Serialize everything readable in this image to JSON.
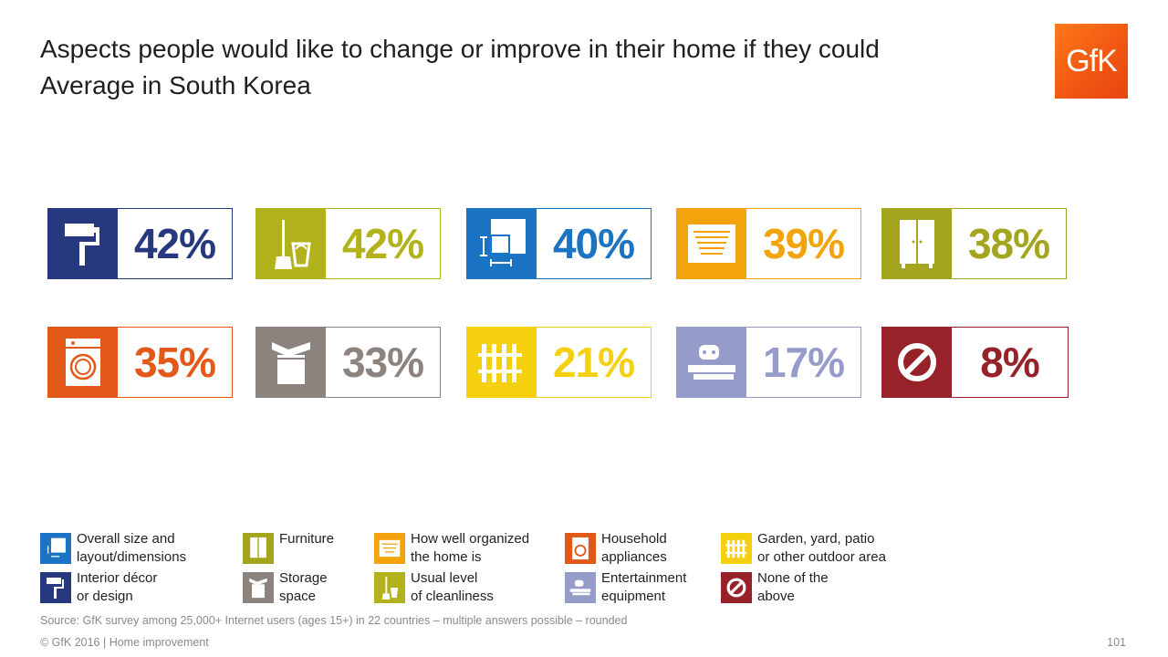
{
  "title": {
    "line1": "Aspects people would like to change or improve in their home if they could",
    "line2": "Average in South Korea"
  },
  "logo": {
    "text": "GfK",
    "color": "#f0591a"
  },
  "tiles": [
    {
      "id": "interior",
      "value": "42%",
      "color": "#27397e",
      "icon": "paint-roller-icon"
    },
    {
      "id": "cleanliness",
      "value": "42%",
      "color": "#b2b21d",
      "icon": "broom-bucket-icon"
    },
    {
      "id": "size",
      "value": "40%",
      "color": "#1a73c3",
      "icon": "floor-plan-dimensions-icon"
    },
    {
      "id": "organized",
      "value": "39%",
      "color": "#f3a40c",
      "icon": "organizer-tray-icon"
    },
    {
      "id": "furniture",
      "value": "38%",
      "color": "#a4a51e",
      "icon": "wardrobe-icon"
    },
    {
      "id": "appliances",
      "value": "35%",
      "color": "#e2591a",
      "icon": "washing-machine-icon"
    },
    {
      "id": "storage",
      "value": "33%",
      "color": "#8c837e",
      "icon": "storage-box-icon"
    },
    {
      "id": "garden",
      "value": "21%",
      "color": "#f4d00f",
      "icon": "fence-icon"
    },
    {
      "id": "entertainment",
      "value": "17%",
      "color": "#959cc9",
      "icon": "game-console-icon"
    },
    {
      "id": "none",
      "value": "8%",
      "color": "#98222a",
      "icon": "prohibited-icon"
    }
  ],
  "legend": {
    "size": {
      "line1": "Overall size and",
      "line2": "layout/dimensions"
    },
    "furniture": {
      "line1": "Furniture",
      "line2": ""
    },
    "organized": {
      "line1": "How well organized",
      "line2": "the home is"
    },
    "appliances": {
      "line1": "Household",
      "line2": "appliances"
    },
    "garden": {
      "line1": "Garden, yard, patio",
      "line2": "or other outdoor area"
    },
    "interior": {
      "line1": "Interior décor",
      "line2": "or design"
    },
    "storage": {
      "line1": "Storage",
      "line2": "space"
    },
    "cleanliness": {
      "line1": "Usual level",
      "line2": "of cleanliness"
    },
    "entertainment": {
      "line1": "Entertainment",
      "line2": "equipment"
    },
    "none": {
      "line1": "None of the",
      "line2": "above"
    }
  },
  "source": "Source: GfK survey among 25,000+ Internet users (ages 15+) in 22 countries – multiple answers possible – rounded",
  "footer": "© GfK 2016 | Home improvement",
  "page_number": "101"
}
